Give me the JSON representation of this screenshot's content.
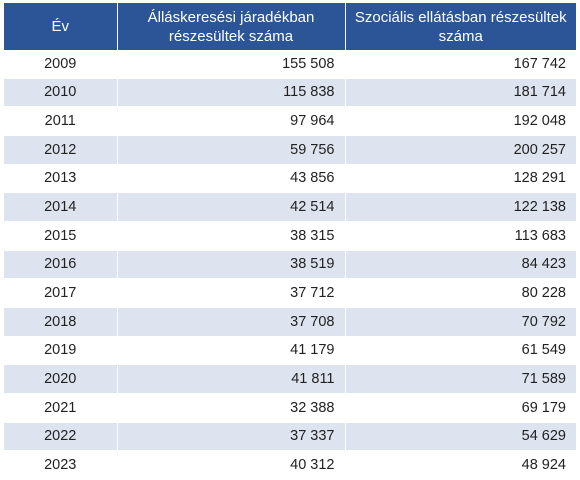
{
  "table": {
    "headers": [
      "Év",
      "Álláskeresési járadékban részesültek száma",
      "Szociális ellátásban részesültek száma"
    ],
    "rows": [
      [
        "2009",
        "155 508",
        "167 742"
      ],
      [
        "2010",
        "115 838",
        "181 714"
      ],
      [
        "2011",
        "97 964",
        "192 048"
      ],
      [
        "2012",
        "59 756",
        "200 257"
      ],
      [
        "2013",
        "43 856",
        "128 291"
      ],
      [
        "2014",
        "42 514",
        "122 138"
      ],
      [
        "2015",
        "38 315",
        "113 683"
      ],
      [
        "2016",
        "38 519",
        "84 423"
      ],
      [
        "2017",
        "37 712",
        "80 228"
      ],
      [
        "2018",
        "37 708",
        "70 792"
      ],
      [
        "2019",
        "41 179",
        "61 549"
      ],
      [
        "2020",
        "41 811",
        "71 589"
      ],
      [
        "2021",
        "32 388",
        "69 179"
      ],
      [
        "2022",
        "37 337",
        "54 629"
      ],
      [
        "2023",
        "40 312",
        "48 924"
      ]
    ]
  },
  "colors": {
    "header_bg": "#2b5597",
    "stripe_bg": "#dde3ef"
  }
}
